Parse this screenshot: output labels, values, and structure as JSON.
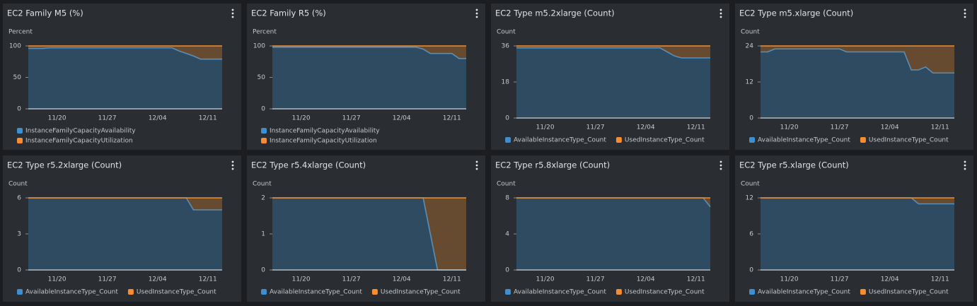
{
  "chart_data": [
    {
      "type": "area",
      "stacked": true,
      "title": "EC2 Family M5 (%)",
      "ylabel": "Percent",
      "x": [
        "11/16",
        "11/17",
        "11/18",
        "11/19",
        "11/20",
        "11/21",
        "11/22",
        "11/23",
        "11/24",
        "11/25",
        "11/26",
        "11/27",
        "11/28",
        "11/29",
        "11/30",
        "12/01",
        "12/02",
        "12/03",
        "12/04",
        "12/05",
        "12/06",
        "12/07",
        "12/08",
        "12/09",
        "12/10",
        "12/11",
        "12/12",
        "12/13"
      ],
      "xticks": [
        "11/20",
        "11/27",
        "12/04",
        "12/11"
      ],
      "ylim": [
        0,
        100
      ],
      "yticks": [
        0,
        50,
        100
      ],
      "series": [
        {
          "name": "InstanceFamilyCapacityAvailability",
          "color": "#3d8fd1",
          "values": [
            96,
            96,
            96,
            97,
            97,
            97,
            97,
            97,
            97,
            97,
            97,
            97,
            97,
            97,
            97,
            97,
            97,
            97,
            97,
            97,
            97,
            92,
            88,
            84,
            79,
            79,
            79,
            79
          ]
        },
        {
          "name": "InstanceFamilyCapacityUtilization",
          "color": "#f68d2e",
          "values": [
            4,
            4,
            4,
            3,
            3,
            3,
            3,
            3,
            3,
            3,
            3,
            3,
            3,
            3,
            3,
            3,
            3,
            3,
            3,
            3,
            3,
            8,
            12,
            16,
            21,
            21,
            21,
            21
          ]
        }
      ]
    },
    {
      "type": "area",
      "stacked": true,
      "title": "EC2 Family R5 (%)",
      "ylabel": "Percent",
      "x": [
        "11/16",
        "11/17",
        "11/18",
        "11/19",
        "11/20",
        "11/21",
        "11/22",
        "11/23",
        "11/24",
        "11/25",
        "11/26",
        "11/27",
        "11/28",
        "11/29",
        "11/30",
        "12/01",
        "12/02",
        "12/03",
        "12/04",
        "12/05",
        "12/06",
        "12/07",
        "12/08",
        "12/09",
        "12/10",
        "12/11",
        "12/12",
        "12/13"
      ],
      "xticks": [
        "11/20",
        "11/27",
        "12/04",
        "12/11"
      ],
      "ylim": [
        0,
        100
      ],
      "yticks": [
        0,
        50,
        100
      ],
      "series": [
        {
          "name": "InstanceFamilyCapacityAvailability",
          "color": "#3d8fd1",
          "values": [
            98,
            98,
            98,
            98,
            98,
            98,
            98,
            98,
            98,
            98,
            98,
            98,
            98,
            98,
            98,
            98,
            98,
            98,
            98,
            98,
            98,
            95,
            88,
            88,
            88,
            88,
            80,
            80
          ]
        },
        {
          "name": "InstanceFamilyCapacityUtilization",
          "color": "#f68d2e",
          "values": [
            2,
            2,
            2,
            2,
            2,
            2,
            2,
            2,
            2,
            2,
            2,
            2,
            2,
            2,
            2,
            2,
            2,
            2,
            2,
            2,
            2,
            5,
            12,
            12,
            12,
            12,
            20,
            20
          ]
        }
      ]
    },
    {
      "type": "area",
      "stacked": true,
      "title": "EC2 Type m5.2xlarge (Count)",
      "ylabel": "Count",
      "x": [
        "11/16",
        "11/17",
        "11/18",
        "11/19",
        "11/20",
        "11/21",
        "11/22",
        "11/23",
        "11/24",
        "11/25",
        "11/26",
        "11/27",
        "11/28",
        "11/29",
        "11/30",
        "12/01",
        "12/02",
        "12/03",
        "12/04",
        "12/05",
        "12/06",
        "12/07",
        "12/08",
        "12/09",
        "12/10",
        "12/11",
        "12/12",
        "12/13"
      ],
      "xticks": [
        "11/20",
        "11/27",
        "12/04",
        "12/11"
      ],
      "ylim": [
        0,
        36
      ],
      "yticks": [
        0,
        18,
        36
      ],
      "series": [
        {
          "name": "AvailableInstanceType_Count",
          "color": "#3d8fd1",
          "values": [
            35,
            35,
            35,
            35,
            35,
            35,
            35,
            35,
            35,
            35,
            35,
            35,
            35,
            35,
            35,
            35,
            35,
            35,
            35,
            35,
            35,
            33,
            31,
            30,
            30,
            30,
            30,
            30
          ]
        },
        {
          "name": "UsedInstanceType_Count",
          "color": "#f68d2e",
          "values": [
            1,
            1,
            1,
            1,
            1,
            1,
            1,
            1,
            1,
            1,
            1,
            1,
            1,
            1,
            1,
            1,
            1,
            1,
            1,
            1,
            1,
            3,
            5,
            6,
            6,
            6,
            6,
            6
          ]
        }
      ]
    },
    {
      "type": "area",
      "stacked": true,
      "title": "EC2 Type m5.xlarge (Count)",
      "ylabel": "Count",
      "x": [
        "11/16",
        "11/17",
        "11/18",
        "11/19",
        "11/20",
        "11/21",
        "11/22",
        "11/23",
        "11/24",
        "11/25",
        "11/26",
        "11/27",
        "11/28",
        "11/29",
        "11/30",
        "12/01",
        "12/02",
        "12/03",
        "12/04",
        "12/05",
        "12/06",
        "12/07",
        "12/08",
        "12/09",
        "12/10",
        "12/11",
        "12/12",
        "12/13"
      ],
      "xticks": [
        "11/20",
        "11/27",
        "12/04",
        "12/11"
      ],
      "ylim": [
        0,
        24
      ],
      "yticks": [
        0,
        12,
        24
      ],
      "series": [
        {
          "name": "AvailableInstanceType_Count",
          "color": "#3d8fd1",
          "values": [
            22,
            22,
            23,
            23,
            23,
            23,
            23,
            23,
            23,
            23,
            23,
            23,
            22,
            22,
            22,
            22,
            22,
            22,
            22,
            22,
            22,
            16,
            16,
            17,
            15,
            15,
            15,
            15
          ]
        },
        {
          "name": "UsedInstanceType_Count",
          "color": "#f68d2e",
          "values": [
            2,
            2,
            1,
            1,
            1,
            1,
            1,
            1,
            1,
            1,
            1,
            1,
            2,
            2,
            2,
            2,
            2,
            2,
            2,
            2,
            2,
            8,
            8,
            7,
            9,
            9,
            9,
            9
          ]
        }
      ]
    },
    {
      "type": "area",
      "stacked": true,
      "title": "EC2 Type r5.2xlarge (Count)",
      "ylabel": "Count",
      "x": [
        "11/16",
        "11/17",
        "11/18",
        "11/19",
        "11/20",
        "11/21",
        "11/22",
        "11/23",
        "11/24",
        "11/25",
        "11/26",
        "11/27",
        "11/28",
        "11/29",
        "11/30",
        "12/01",
        "12/02",
        "12/03",
        "12/04",
        "12/05",
        "12/06",
        "12/07",
        "12/08",
        "12/09",
        "12/10",
        "12/11",
        "12/12",
        "12/13"
      ],
      "xticks": [
        "11/20",
        "11/27",
        "12/04",
        "12/11"
      ],
      "ylim": [
        0,
        6
      ],
      "yticks": [
        0,
        3,
        6
      ],
      "series": [
        {
          "name": "AvailableInstanceType_Count",
          "color": "#3d8fd1",
          "values": [
            6,
            6,
            6,
            6,
            6,
            6,
            6,
            6,
            6,
            6,
            6,
            6,
            6,
            6,
            6,
            6,
            6,
            6,
            6,
            6,
            6,
            6,
            6,
            5,
            5,
            5,
            5,
            5
          ]
        },
        {
          "name": "UsedInstanceType_Count",
          "color": "#f68d2e",
          "values": [
            0,
            0,
            0,
            0,
            0,
            0,
            0,
            0,
            0,
            0,
            0,
            0,
            0,
            0,
            0,
            0,
            0,
            0,
            0,
            0,
            0,
            0,
            0,
            1,
            1,
            1,
            1,
            1
          ]
        }
      ]
    },
    {
      "type": "area",
      "stacked": true,
      "title": "EC2 Type r5.4xlarge (Count)",
      "ylabel": "Count",
      "x": [
        "11/16",
        "11/17",
        "11/18",
        "11/19",
        "11/20",
        "11/21",
        "11/22",
        "11/23",
        "11/24",
        "11/25",
        "11/26",
        "11/27",
        "11/28",
        "11/29",
        "11/30",
        "12/01",
        "12/02",
        "12/03",
        "12/04",
        "12/05",
        "12/06",
        "12/07",
        "12/08",
        "12/09",
        "12/10",
        "12/11",
        "12/12",
        "12/13"
      ],
      "xticks": [
        "11/20",
        "11/27",
        "12/04",
        "12/11"
      ],
      "ylim": [
        0,
        2
      ],
      "yticks": [
        0,
        1,
        2
      ],
      "series": [
        {
          "name": "AvailableInstanceType_Count",
          "color": "#3d8fd1",
          "values": [
            2,
            2,
            2,
            2,
            2,
            2,
            2,
            2,
            2,
            2,
            2,
            2,
            2,
            2,
            2,
            2,
            2,
            2,
            2,
            2,
            2,
            2,
            1,
            0,
            0,
            0,
            0,
            0
          ]
        },
        {
          "name": "UsedInstanceType_Count",
          "color": "#f68d2e",
          "values": [
            0,
            0,
            0,
            0,
            0,
            0,
            0,
            0,
            0,
            0,
            0,
            0,
            0,
            0,
            0,
            0,
            0,
            0,
            0,
            0,
            0,
            0,
            1,
            2,
            2,
            2,
            2,
            2
          ]
        }
      ]
    },
    {
      "type": "area",
      "stacked": true,
      "title": "EC2 Type r5.8xlarge (Count)",
      "ylabel": "Count",
      "x": [
        "11/16",
        "11/17",
        "11/18",
        "11/19",
        "11/20",
        "11/21",
        "11/22",
        "11/23",
        "11/24",
        "11/25",
        "11/26",
        "11/27",
        "11/28",
        "11/29",
        "11/30",
        "12/01",
        "12/02",
        "12/03",
        "12/04",
        "12/05",
        "12/06",
        "12/07",
        "12/08",
        "12/09",
        "12/10",
        "12/11",
        "12/12",
        "12/13"
      ],
      "xticks": [
        "11/20",
        "11/27",
        "12/04",
        "12/11"
      ],
      "ylim": [
        0,
        8
      ],
      "yticks": [
        0,
        4,
        8
      ],
      "series": [
        {
          "name": "AvailableInstanceType_Count",
          "color": "#3d8fd1",
          "values": [
            8,
            8,
            8,
            8,
            8,
            8,
            8,
            8,
            8,
            8,
            8,
            8,
            8,
            8,
            8,
            8,
            8,
            8,
            8,
            8,
            8,
            8,
            8,
            8,
            8,
            8,
            8,
            7
          ]
        },
        {
          "name": "UsedInstanceType_Count",
          "color": "#f68d2e",
          "values": [
            0,
            0,
            0,
            0,
            0,
            0,
            0,
            0,
            0,
            0,
            0,
            0,
            0,
            0,
            0,
            0,
            0,
            0,
            0,
            0,
            0,
            0,
            0,
            0,
            0,
            0,
            0,
            1
          ]
        }
      ]
    },
    {
      "type": "area",
      "stacked": true,
      "title": "EC2 Type r5.xlarge (Count)",
      "ylabel": "Count",
      "x": [
        "11/16",
        "11/17",
        "11/18",
        "11/19",
        "11/20",
        "11/21",
        "11/22",
        "11/23",
        "11/24",
        "11/25",
        "11/26",
        "11/27",
        "11/28",
        "11/29",
        "11/30",
        "12/01",
        "12/02",
        "12/03",
        "12/04",
        "12/05",
        "12/06",
        "12/07",
        "12/08",
        "12/09",
        "12/10",
        "12/11",
        "12/12",
        "12/13"
      ],
      "xticks": [
        "11/20",
        "11/27",
        "12/04",
        "12/11"
      ],
      "ylim": [
        0,
        12
      ],
      "yticks": [
        0,
        6,
        12
      ],
      "series": [
        {
          "name": "AvailableInstanceType_Count",
          "color": "#3d8fd1",
          "values": [
            12,
            12,
            12,
            12,
            12,
            12,
            12,
            12,
            12,
            12,
            12,
            12,
            12,
            12,
            12,
            12,
            12,
            12,
            12,
            12,
            12,
            12,
            11,
            11,
            11,
            11,
            11,
            11
          ]
        },
        {
          "name": "UsedInstanceType_Count",
          "color": "#f68d2e",
          "values": [
            0,
            0,
            0,
            0,
            0,
            0,
            0,
            0,
            0,
            0,
            0,
            0,
            0,
            0,
            0,
            0,
            0,
            0,
            0,
            0,
            0,
            0,
            1,
            1,
            1,
            1,
            1,
            1
          ]
        }
      ]
    }
  ]
}
